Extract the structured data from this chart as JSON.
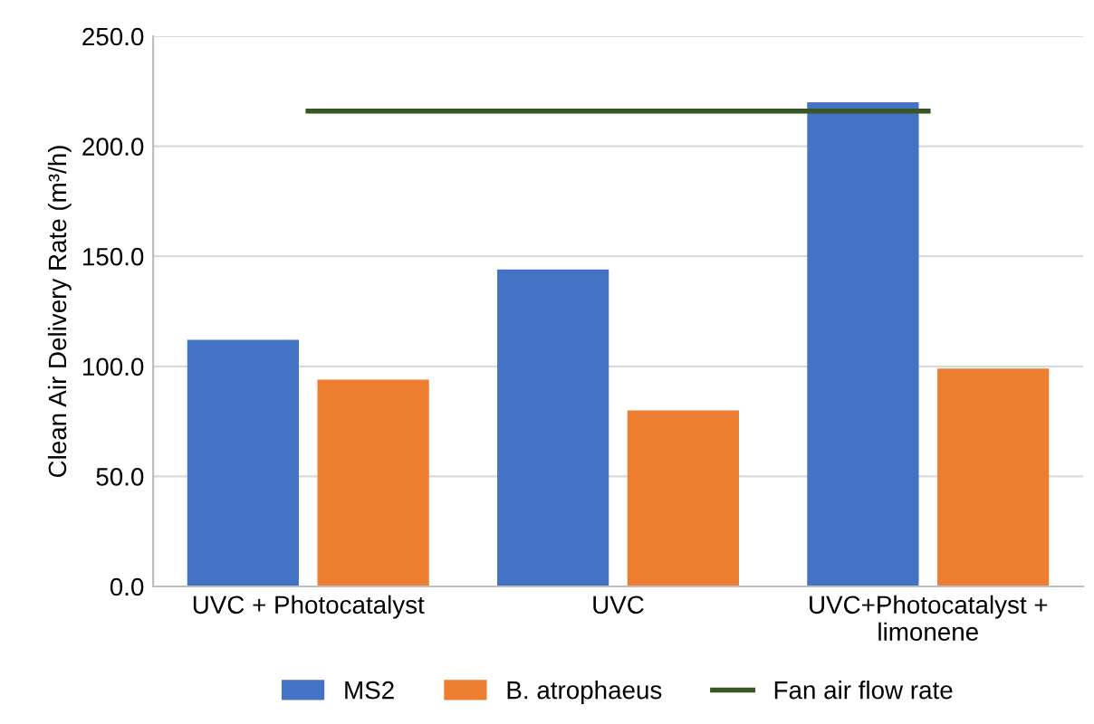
{
  "chart_data": {
    "type": "bar",
    "ylabel": "Clean Air Delivery Rate (m³/h)",
    "categories": [
      "UVC + Photocatalyst",
      "UVC",
      "UVC+Photocatalyst +\nlimonene"
    ],
    "series": [
      {
        "name": "MS2",
        "color": "#4472c4",
        "values": [
          112,
          144,
          220
        ]
      },
      {
        "name": "B. atrophaeus",
        "color": "#ed7d31",
        "values": [
          94,
          80,
          99
        ]
      },
      {
        "name": "Fan air flow rate",
        "type": "line",
        "color": "#375623",
        "values": [
          216,
          216,
          216
        ]
      }
    ],
    "ylim": [
      0,
      250
    ],
    "yticks": [
      {
        "value": 0,
        "label": "0.0"
      },
      {
        "value": 50,
        "label": "50.0"
      },
      {
        "value": 100,
        "label": "100.0"
      },
      {
        "value": 150,
        "label": "150.0"
      },
      {
        "value": 200,
        "label": "200.0"
      },
      {
        "value": 250,
        "label": "250.0"
      }
    ],
    "grid": "y",
    "legend": "bottom"
  }
}
